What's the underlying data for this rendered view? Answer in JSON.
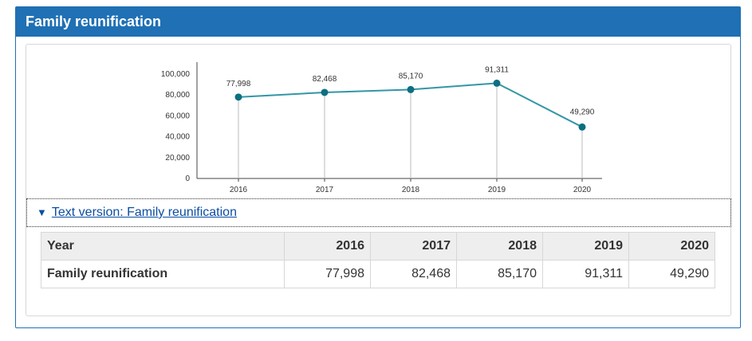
{
  "panel": {
    "title": "Family reunification"
  },
  "details": {
    "summary": "Text version: Family reunification"
  },
  "table": {
    "columns": [
      "Year",
      "2016",
      "2017",
      "2018",
      "2019",
      "2020"
    ],
    "row": {
      "label": "Family reunification",
      "values": [
        "77,998",
        "82,468",
        "85,170",
        "91,311",
        "49,290"
      ]
    }
  },
  "colors": {
    "header": "#1f70b4",
    "line": "#3396a6",
    "point": "#0c6f82",
    "link": "#0b4da2"
  },
  "chart_data": {
    "type": "line",
    "categories": [
      "2016",
      "2017",
      "2018",
      "2019",
      "2020"
    ],
    "values": [
      77998,
      82468,
      85170,
      91311,
      49290
    ],
    "data_labels": [
      "77,998",
      "82,468",
      "85,170",
      "91,311",
      "49,290"
    ],
    "yticks": [
      0,
      20000,
      40000,
      60000,
      80000,
      100000
    ],
    "ytick_labels": [
      "0",
      "20,000",
      "40,000",
      "60,000",
      "80,000",
      "100,000"
    ],
    "ylim": [
      0,
      100000
    ],
    "grid": false
  }
}
